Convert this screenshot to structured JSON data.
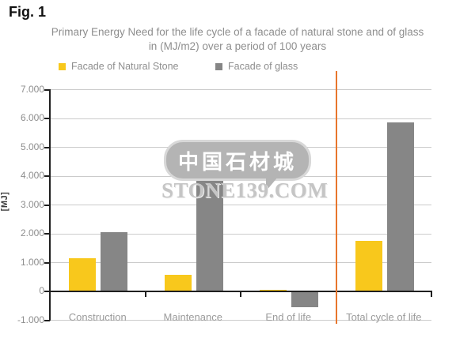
{
  "figure_label": "Fig. 1",
  "title": {
    "line1": "Primary Energy Need for the life cycle of a facade of natural stone and of glass",
    "line2": "in (MJ/m2) over a period of 100 years"
  },
  "legend": {
    "items": [
      {
        "label": "Facade of Natural Stone",
        "color": "#F8C81C"
      },
      {
        "label": "Facade of glass",
        "color": "#868686"
      }
    ]
  },
  "watermark": {
    "bubble_text": "中国石材城",
    "site_text": "STONE139.COM"
  },
  "colors": {
    "natural_stone": "#F8C81C",
    "glass": "#868686",
    "separator_line": "#E8762C",
    "gridline": "#cbcbcb",
    "axis": "#1f1f1f",
    "muted_text": "#8e8e8e"
  },
  "chart_data": {
    "type": "bar",
    "title": "Primary Energy Need for the life cycle of a facade of natural stone and of glass in (MJ/m2) over a period of 100 years",
    "xlabel": "",
    "ylabel": "[MJ]",
    "categories": [
      "Construction",
      "Maintenance",
      "End of life",
      "Total cycle of life"
    ],
    "series": [
      {
        "name": "Facade of Natural Stone",
        "color": "#F8C81C",
        "values": [
          1150,
          550,
          50,
          1750
        ]
      },
      {
        "name": "Facade of glass",
        "color": "#868686",
        "values": [
          2050,
          4400,
          -550,
          5850
        ]
      }
    ],
    "ylim": [
      -1000,
      7000
    ],
    "ytick_step": 1000,
    "ytick_labels": [
      "7.000",
      "6.000",
      "5.000",
      "4.000",
      "3.000",
      "2.000",
      "1.000",
      "0",
      "-1.000"
    ],
    "grid": true,
    "legend_position": "top",
    "separator_line": {
      "color": "#E8762C",
      "after_category": "End of life"
    }
  }
}
